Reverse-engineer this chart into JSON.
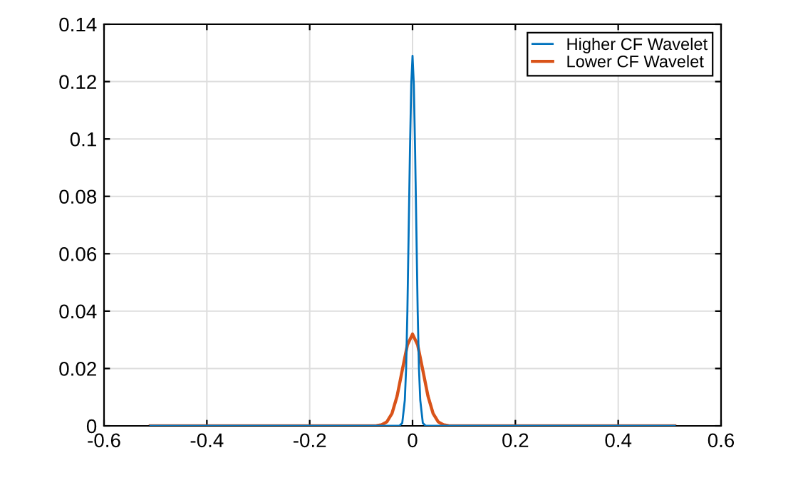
{
  "chart_data": {
    "type": "line",
    "xlim": [
      -0.6,
      0.6
    ],
    "xticks": [
      -0.6,
      -0.4,
      -0.2,
      0,
      0.2,
      0.4,
      0.6
    ],
    "ylim": [
      0,
      0.14
    ],
    "yticks": [
      0,
      0.02,
      0.04,
      0.06,
      0.08,
      0.1,
      0.12,
      0.14
    ],
    "grid": true,
    "legend": "top right",
    "line_style": "solid",
    "marker": "none",
    "series": [
      {
        "name": "Higher CF Wavelet",
        "color": "#0072bd",
        "x": [
          -0.51,
          -0.03,
          -0.025,
          -0.02,
          -0.015,
          -0.0125,
          -0.01,
          -0.0075,
          -0.005,
          -0.0025,
          0,
          0.0025,
          0.005,
          0.0075,
          0.01,
          0.0125,
          0.015,
          0.02,
          0.025,
          0.03,
          0.51
        ],
        "values": [
          0,
          0,
          0.0001,
          0.001,
          0.009,
          0.02,
          0.04,
          0.068,
          0.096,
          0.119,
          0.129,
          0.119,
          0.096,
          0.068,
          0.04,
          0.02,
          0.009,
          0.001,
          0.0001,
          0,
          0
        ]
      },
      {
        "name": "Lower CF Wavelet",
        "color": "#d95319",
        "x": [
          -0.51,
          -0.08,
          -0.07,
          -0.06,
          -0.05,
          -0.04,
          -0.03,
          -0.02,
          -0.01,
          0,
          0.01,
          0.02,
          0.03,
          0.04,
          0.05,
          0.06,
          0.07,
          0.08,
          0.51
        ],
        "values": [
          0,
          0,
          0.0001,
          0.0004,
          0.0014,
          0.0043,
          0.0104,
          0.0194,
          0.0282,
          0.032,
          0.0282,
          0.0194,
          0.0104,
          0.0043,
          0.0014,
          0.0004,
          0.0001,
          0,
          0
        ]
      }
    ]
  }
}
